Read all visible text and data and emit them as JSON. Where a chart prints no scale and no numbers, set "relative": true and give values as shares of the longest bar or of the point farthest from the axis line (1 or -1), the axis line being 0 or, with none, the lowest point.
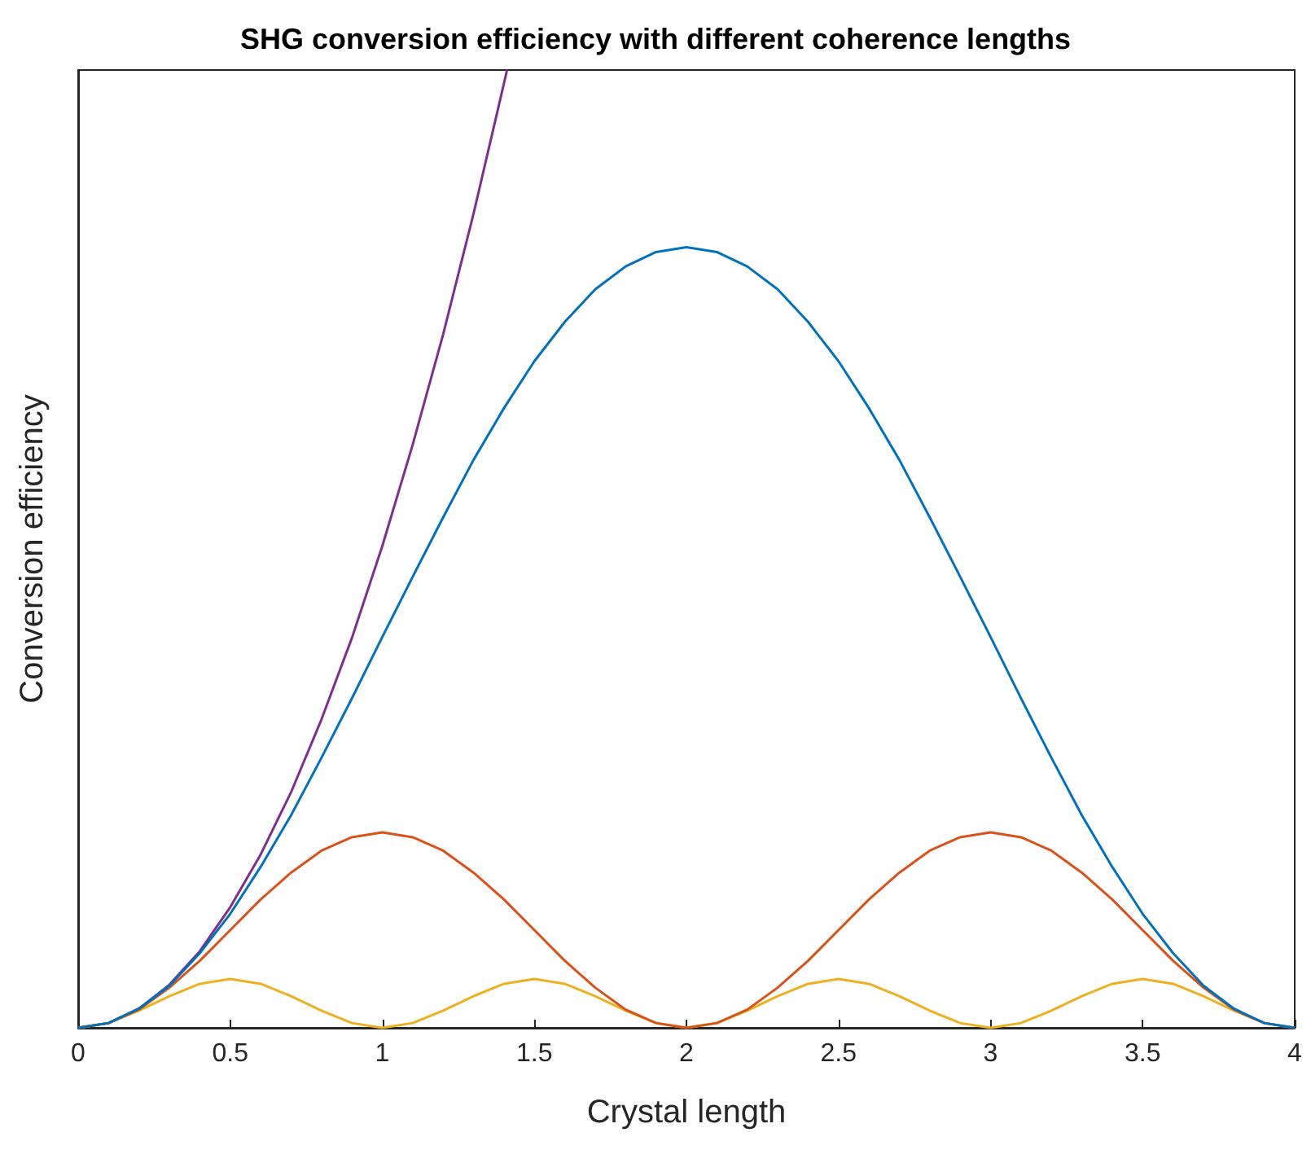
{
  "chart_data": {
    "type": "line",
    "title": "SHG conversion efficiency with different coherence lengths",
    "xlabel": "Crystal length",
    "ylabel": "Conversion efficiency",
    "relative": true,
    "xlim": [
      0,
      4
    ],
    "xticks": [
      0,
      0.5,
      1,
      1.5,
      2,
      2.5,
      3,
      3.5,
      4
    ],
    "grid": false,
    "marker": "none",
    "line_style": "solid",
    "x": [
      0,
      0.1,
      0.2,
      0.3,
      0.4,
      0.5,
      0.6,
      0.7,
      0.8,
      0.9,
      1,
      1.1,
      1.2,
      1.3,
      1.4,
      1.5,
      1.6,
      1.7,
      1.8,
      1.9,
      2,
      2.1,
      2.2,
      2.3,
      2.4,
      2.5,
      2.6,
      2.7,
      2.8,
      2.9,
      3,
      3.1,
      3.2,
      3.3,
      3.4,
      3.5,
      3.6,
      3.7,
      3.8,
      3.9,
      4
    ],
    "series": [
      {
        "color": "#0072bd",
        "values": [
          0,
          0.005,
          0.02,
          0.044,
          0.078,
          0.119,
          0.168,
          0.222,
          0.282,
          0.344,
          0.408,
          0.471,
          0.533,
          0.593,
          0.647,
          0.696,
          0.737,
          0.771,
          0.795,
          0.81,
          0.815,
          0.81,
          0.795,
          0.771,
          0.737,
          0.696,
          0.647,
          0.593,
          0.533,
          0.471,
          0.408,
          0.344,
          0.282,
          0.222,
          0.168,
          0.119,
          0.078,
          0.044,
          0.02,
          0.005,
          0
        ]
      },
      {
        "color": "#d95319",
        "values": [
          0,
          0.005,
          0.019,
          0.042,
          0.07,
          0.102,
          0.134,
          0.162,
          0.185,
          0.199,
          0.204,
          0.199,
          0.185,
          0.162,
          0.134,
          0.102,
          0.07,
          0.042,
          0.019,
          0.005,
          0,
          0.005,
          0.019,
          0.042,
          0.07,
          0.102,
          0.134,
          0.162,
          0.185,
          0.199,
          0.204,
          0.199,
          0.185,
          0.162,
          0.134,
          0.102,
          0.07,
          0.042,
          0.019,
          0.005,
          0
        ]
      },
      {
        "color": "#edb120",
        "values": [
          0,
          0.005,
          0.018,
          0.033,
          0.046,
          0.051,
          0.046,
          0.033,
          0.018,
          0.005,
          0,
          0.005,
          0.018,
          0.033,
          0.046,
          0.051,
          0.046,
          0.033,
          0.018,
          0.005,
          0,
          0.005,
          0.018,
          0.033,
          0.046,
          0.051,
          0.046,
          0.033,
          0.018,
          0.005,
          0,
          0.005,
          0.018,
          0.033,
          0.046,
          0.051,
          0.046,
          0.033,
          0.018,
          0.005,
          0
        ]
      },
      {
        "color": "#7e2f8e",
        "x": [
          0,
          0.1,
          0.2,
          0.3,
          0.4,
          0.5,
          0.6,
          0.7,
          0.8,
          0.9,
          1,
          1.1,
          1.2,
          1.3,
          1.4,
          1.41
        ],
        "values": [
          0,
          0.005,
          0.02,
          0.045,
          0.08,
          0.126,
          0.181,
          0.246,
          0.322,
          0.407,
          0.503,
          0.609,
          0.724,
          0.85,
          0.986,
          1
        ]
      }
    ]
  }
}
